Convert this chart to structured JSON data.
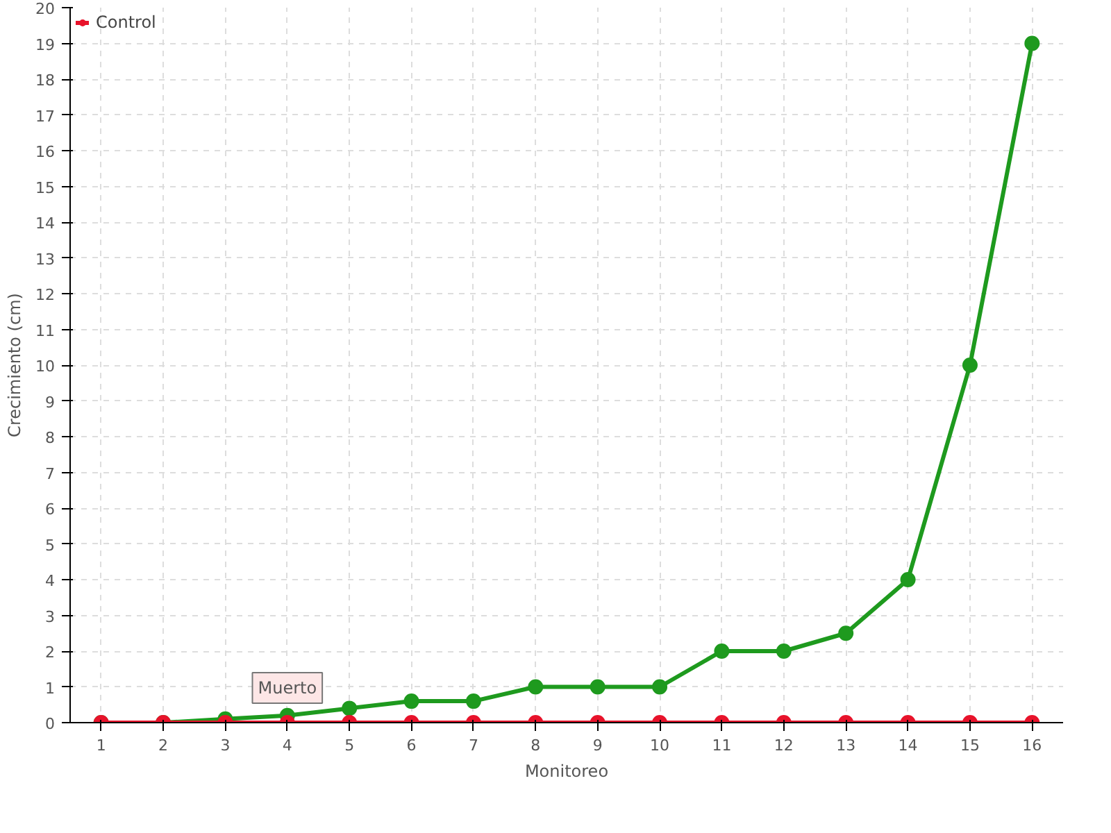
{
  "chart_data": {
    "type": "line",
    "xlabel": "Monitoreo",
    "ylabel": "Crecimiento (cm)",
    "x": [
      1,
      2,
      3,
      4,
      5,
      6,
      7,
      8,
      9,
      10,
      11,
      12,
      13,
      14,
      15,
      16
    ],
    "series": [
      {
        "color": "#1e9a1e",
        "values": [
          0,
          0,
          0.1,
          0.2,
          0.4,
          0.6,
          0.6,
          1,
          1,
          1,
          2,
          2,
          2.5,
          4,
          10,
          19
        ]
      },
      {
        "name": "Control",
        "color": "#e8132b",
        "values": [
          0,
          0,
          0,
          0,
          0,
          0,
          0,
          0,
          0,
          0,
          0,
          0,
          0,
          0,
          0,
          0
        ]
      }
    ],
    "xlim": [
      0.5,
      16.5
    ],
    "ylim": [
      0,
      20
    ],
    "xticks": [
      1,
      2,
      3,
      4,
      5,
      6,
      7,
      8,
      9,
      10,
      11,
      12,
      13,
      14,
      15,
      16
    ],
    "yticks": [
      0,
      1,
      2,
      3,
      4,
      5,
      6,
      7,
      8,
      9,
      10,
      11,
      12,
      13,
      14,
      15,
      16,
      17,
      18,
      19,
      20
    ],
    "annotations": [
      {
        "text": "Muerto",
        "x": 4,
        "y": 0
      }
    ],
    "grid": true,
    "legend": "top left",
    "marker": "circle",
    "line_style": "solid"
  }
}
